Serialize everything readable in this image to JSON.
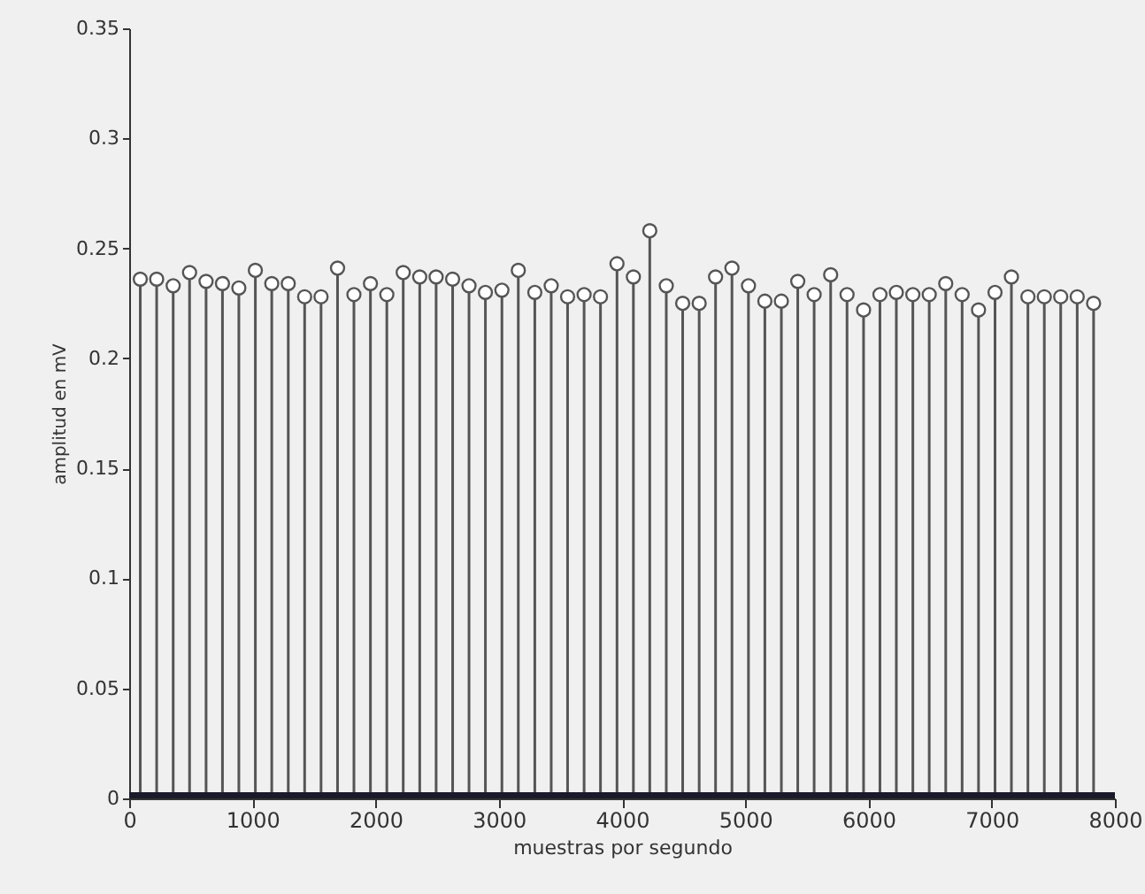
{
  "chart_data": {
    "type": "lollipop",
    "xlabel": "muestras por segundo",
    "ylabel": "amplitud en mV",
    "xlim": [
      0,
      8000
    ],
    "xticks": [
      0,
      1000,
      2000,
      3000,
      4000,
      5000,
      6000,
      7000,
      8000
    ],
    "ylim": [
      0,
      0.35
    ],
    "yticks": [
      0,
      0.05,
      0.1,
      0.15,
      0.2,
      0.25,
      0.3,
      0.35
    ],
    "grid": false,
    "marker": "circle",
    "series": [
      {
        "color": "#555555",
        "x": [
          90,
          223,
          357,
          490,
          624,
          757,
          890,
          1024,
          1157,
          1291,
          1424,
          1557,
          1691,
          1824,
          1958,
          2091,
          2224,
          2358,
          2491,
          2625,
          2758,
          2891,
          3025,
          3158,
          3292,
          3425,
          3558,
          3692,
          3825,
          3959,
          4092,
          4225,
          4359,
          4492,
          4626,
          4759,
          4892,
          5026,
          5159,
          5293,
          5426,
          5559,
          5693,
          5826,
          5960,
          6093,
          6226,
          6360,
          6493,
          6627,
          6760,
          6893,
          7027,
          7160,
          7294,
          7427,
          7560,
          7694,
          7827
        ],
        "values": [
          0.236,
          0.236,
          0.233,
          0.239,
          0.235,
          0.234,
          0.232,
          0.24,
          0.234,
          0.234,
          0.228,
          0.228,
          0.241,
          0.229,
          0.234,
          0.229,
          0.239,
          0.237,
          0.237,
          0.236,
          0.233,
          0.23,
          0.231,
          0.24,
          0.23,
          0.233,
          0.228,
          0.229,
          0.228,
          0.243,
          0.237,
          0.258,
          0.233,
          0.225,
          0.225,
          0.237,
          0.241,
          0.233,
          0.226,
          0.226,
          0.235,
          0.229,
          0.238,
          0.229,
          0.222,
          0.229,
          0.23,
          0.229,
          0.229,
          0.234,
          0.229,
          0.222,
          0.23,
          0.237,
          0.228,
          0.228,
          0.228,
          0.228,
          0.225
        ]
      },
      {
        "type": "line",
        "marker": "none",
        "color": "#1a1a2a",
        "x": [
          0,
          8000
        ],
        "values": [
          0,
          0
        ]
      }
    ]
  }
}
